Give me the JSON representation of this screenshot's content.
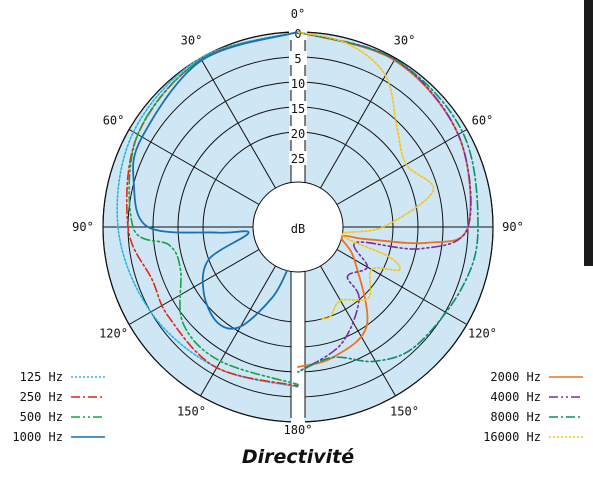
{
  "chart_data": {
    "type": "polar",
    "title": "Directivité",
    "center_label": "dB",
    "radial_axis": {
      "unit": "dB",
      "ticks": [
        "0",
        "5",
        "10",
        "15",
        "20",
        "25"
      ],
      "range": [
        0,
        30
      ]
    },
    "angle_labels": [
      {
        "label": "0°",
        "angle": 0,
        "side": "top"
      },
      {
        "label": "30°",
        "angle": 30,
        "side": "left"
      },
      {
        "label": "30°",
        "angle": 30,
        "side": "right"
      },
      {
        "label": "60°",
        "angle": 60,
        "side": "left"
      },
      {
        "label": "60°",
        "angle": 60,
        "side": "right"
      },
      {
        "label": "90°",
        "angle": 90,
        "side": "left"
      },
      {
        "label": "90°",
        "angle": 90,
        "side": "right"
      },
      {
        "label": "120°",
        "angle": 120,
        "side": "left"
      },
      {
        "label": "120°",
        "angle": 120,
        "side": "right"
      },
      {
        "label": "150°",
        "angle": 150,
        "side": "left"
      },
      {
        "label": "150°",
        "angle": 150,
        "side": "right"
      },
      {
        "label": "180°",
        "angle": 180,
        "side": "bottom"
      }
    ],
    "series": [
      {
        "name": "125 Hz",
        "side": "left",
        "color": "#29b6e6",
        "dash": "2,2",
        "width": 1.6,
        "points": [
          [
            0,
            0
          ],
          [
            30,
            0
          ],
          [
            60,
            1
          ],
          [
            90,
            3
          ],
          [
            120,
            5
          ],
          [
            150,
            6.5
          ],
          [
            180,
            7
          ]
        ]
      },
      {
        "name": "250 Hz",
        "side": "left",
        "color": "#e32619",
        "dash": "9,3,2,3",
        "width": 1.6,
        "points": [
          [
            0,
            0
          ],
          [
            30,
            0.3
          ],
          [
            60,
            2
          ],
          [
            90,
            5
          ],
          [
            110,
            8
          ],
          [
            125,
            7.5
          ],
          [
            150,
            6.5
          ],
          [
            180,
            7.2
          ]
        ]
      },
      {
        "name": "500 Hz",
        "side": "left",
        "color": "#16a34a",
        "dash": "9,3,2,3,2,3",
        "width": 1.6,
        "points": [
          [
            0,
            0
          ],
          [
            30,
            0.3
          ],
          [
            60,
            2
          ],
          [
            90,
            6
          ],
          [
            98,
            13
          ],
          [
            110,
            14
          ],
          [
            130,
            9
          ],
          [
            150,
            8
          ],
          [
            180,
            7.5
          ]
        ]
      },
      {
        "name": "1000 Hz",
        "side": "left",
        "color": "#1a6fb5",
        "dash": "",
        "width": 1.8,
        "points": [
          [
            0,
            0
          ],
          [
            30,
            0.5
          ],
          [
            60,
            3
          ],
          [
            75,
            5
          ],
          [
            90,
            9
          ],
          [
            94,
            23
          ],
          [
            97,
            29
          ],
          [
            110,
            20
          ],
          [
            125,
            16
          ],
          [
            140,
            14
          ],
          [
            150,
            16
          ],
          [
            160,
            24
          ],
          [
            166,
            30
          ]
        ]
      },
      {
        "name": "2000 Hz",
        "side": "right",
        "color": "#f07021",
        "dash": "",
        "width": 1.8,
        "points": [
          [
            0,
            0
          ],
          [
            30,
            0.5
          ],
          [
            60,
            2
          ],
          [
            90,
            5
          ],
          [
            97,
            13
          ],
          [
            100,
            25
          ],
          [
            103,
            30
          ],
          [
            120,
            26
          ],
          [
            145,
            15
          ],
          [
            165,
            12
          ],
          [
            180,
            11
          ]
        ]
      },
      {
        "name": "4000 Hz",
        "side": "right",
        "color": "#7b2da8",
        "dash": "9,3,2,3,2,3",
        "width": 1.6,
        "points": [
          [
            0,
            0
          ],
          [
            30,
            0.3
          ],
          [
            60,
            2
          ],
          [
            90,
            5
          ],
          [
            100,
            14
          ],
          [
            105,
            27
          ],
          [
            120,
            23
          ],
          [
            135,
            25
          ],
          [
            140,
            20
          ],
          [
            160,
            14
          ],
          [
            180,
            10
          ]
        ]
      },
      {
        "name": "8000 Hz",
        "side": "right",
        "color": "#0b8f6a",
        "dash": "9,3,2,3",
        "width": 1.6,
        "points": [
          [
            0,
            0
          ],
          [
            30,
            0.3
          ],
          [
            60,
            1
          ],
          [
            90,
            3
          ],
          [
            110,
            4
          ],
          [
            135,
            5.5
          ],
          [
            150,
            8
          ],
          [
            165,
            12
          ],
          [
            180,
            10
          ]
        ]
      },
      {
        "name": "16000 Hz",
        "side": "right",
        "color": "#f5c518",
        "dash": "2,2",
        "width": 1.6,
        "points": [
          [
            0,
            0
          ],
          [
            15,
            1
          ],
          [
            30,
            4
          ],
          [
            45,
            11
          ],
          [
            60,
            14
          ],
          [
            75,
            11
          ],
          [
            90,
            22
          ],
          [
            100,
            30
          ],
          [
            108,
            20
          ],
          [
            113,
            17
          ],
          [
            120,
            22
          ],
          [
            135,
            19
          ],
          [
            150,
            22
          ],
          [
            160,
            20
          ],
          [
            165,
            20
          ]
        ]
      }
    ]
  },
  "legend": {
    "left": [
      {
        "label": "125 Hz",
        "color": "#29b6e6",
        "dash": "2,2"
      },
      {
        "label": "250 Hz",
        "color": "#e32619",
        "dash": "9,3,2,3"
      },
      {
        "label": "500 Hz",
        "color": "#16a34a",
        "dash": "9,3,2,3,2,3"
      },
      {
        "label": "1000 Hz",
        "color": "#1a6fb5",
        "dash": ""
      }
    ],
    "right": [
      {
        "label": "2000 Hz",
        "color": "#f07021",
        "dash": ""
      },
      {
        "label": "4000 Hz",
        "color": "#7b2da8",
        "dash": "9,3,2,3,2,3"
      },
      {
        "label": "8000 Hz",
        "color": "#0b8f6a",
        "dash": "9,3,2,3"
      },
      {
        "label": "16000 Hz",
        "color": "#f5c518",
        "dash": "2,2"
      }
    ]
  },
  "colors": {
    "disc_fill": "#cfe6f4",
    "grid": "#111111",
    "background": "#ffffff"
  }
}
